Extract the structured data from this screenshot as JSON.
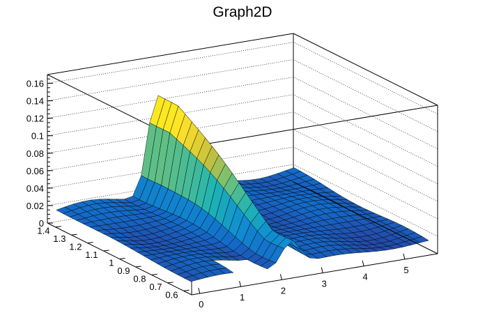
{
  "chart_data": {
    "type": "surface",
    "title": "Graph2D",
    "x_ticks": [
      "0",
      "1",
      "2",
      "3",
      "4",
      "5"
    ],
    "y_ticks": [
      "0.6",
      "0.7",
      "0.8",
      "0.9",
      "1",
      "1.1",
      "1.2",
      "1.3",
      "1.4"
    ],
    "z_ticks": [
      "0",
      "0.02",
      "0.04",
      "0.06",
      "0.08",
      "0.1",
      "0.12",
      "0.14",
      "0.16"
    ],
    "x_range": [
      -0.2,
      5.8
    ],
    "y_range": [
      0.55,
      1.45
    ],
    "z_range": [
      0,
      0.17
    ],
    "grid": true,
    "legend": "none",
    "colormap": [
      "#352a87",
      "#1469c7",
      "#0f8fd1",
      "#1fb4b4",
      "#66c080",
      "#c3c040",
      "#fbde2b",
      "#f9fb0e"
    ],
    "surface_description": "Low plateau ~0.01 across most of the domain, rising to a sharp ridge near x=2.0-2.6 peaking ~0.12 at high y; a gap in the surface near x=1.0-1.8 at low y"
  }
}
